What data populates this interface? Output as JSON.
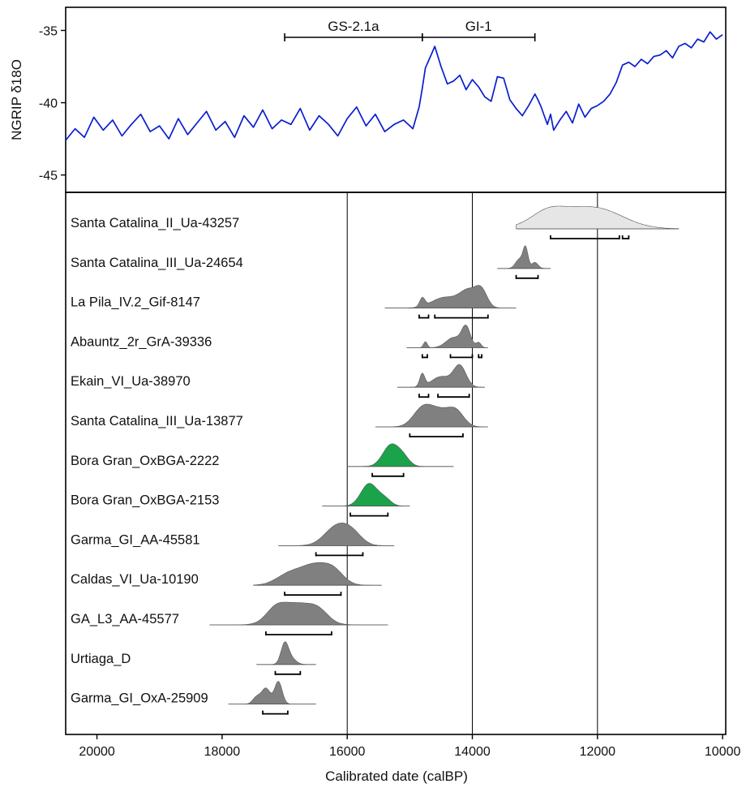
{
  "chart_data": [
    {
      "type": "line",
      "ylabel": "NGRIP δ18O",
      "xlim": [
        20500,
        9950
      ],
      "ylim": [
        -46.2,
        -33.4
      ],
      "yticks": [
        -35,
        -40,
        -45
      ],
      "line_color": "#0a1ecf",
      "stages": [
        {
          "label": "GS-2.1a",
          "start": 17000,
          "end": 14800
        },
        {
          "label": "GI-1",
          "start": 14800,
          "end": 13000
        }
      ],
      "series": [
        {
          "x": [
            20500,
            20350,
            20200,
            20050,
            19900,
            19750,
            19600,
            19450,
            19300,
            19150,
            19000,
            18850,
            18700,
            18550,
            18400,
            18250,
            18100,
            17950,
            17800,
            17650,
            17500,
            17350,
            17200,
            17050,
            16900,
            16750,
            16600,
            16450,
            16300,
            16150,
            16000,
            15850,
            15700,
            15550,
            15400,
            15250,
            15100,
            14950,
            14850,
            14800,
            14750,
            14700,
            14650,
            14600,
            14500,
            14400,
            14300,
            14200,
            14100,
            14000,
            13900,
            13800,
            13700,
            13600,
            13500,
            13400,
            13300,
            13200,
            13100,
            13000,
            12950,
            12900,
            12850,
            12800,
            12750,
            12700,
            12600,
            12500,
            12400,
            12300,
            12200,
            12100,
            12000,
            11900,
            11800,
            11700,
            11600,
            11500,
            11400,
            11300,
            11200,
            11100,
            11000,
            10900,
            10800,
            10700,
            10600,
            10500,
            10400,
            10300,
            10200,
            10100,
            10000
          ],
          "y": [
            -42.6,
            -41.8,
            -42.4,
            -41.0,
            -41.9,
            -41.2,
            -42.3,
            -41.5,
            -40.8,
            -42.0,
            -41.6,
            -42.5,
            -41.1,
            -42.2,
            -41.4,
            -40.6,
            -41.9,
            -41.3,
            -42.4,
            -40.9,
            -41.7,
            -40.5,
            -41.8,
            -41.2,
            -41.5,
            -40.4,
            -41.9,
            -40.9,
            -41.5,
            -42.3,
            -41.1,
            -40.3,
            -41.6,
            -40.8,
            -42.0,
            -41.5,
            -41.2,
            -41.8,
            -40.3,
            -39.0,
            -37.6,
            -37.1,
            -36.6,
            -36.1,
            -37.5,
            -38.7,
            -38.5,
            -38.1,
            -39.1,
            -38.4,
            -38.9,
            -39.6,
            -39.9,
            -38.2,
            -38.3,
            -39.8,
            -40.4,
            -40.9,
            -40.2,
            -39.4,
            -39.8,
            -40.3,
            -40.9,
            -41.5,
            -40.8,
            -41.9,
            -41.2,
            -40.6,
            -41.4,
            -40.1,
            -41.0,
            -40.4,
            -40.2,
            -39.9,
            -39.4,
            -38.6,
            -37.4,
            -37.2,
            -37.5,
            -37.0,
            -37.3,
            -36.8,
            -36.7,
            -36.4,
            -36.9,
            -36.1,
            -35.9,
            -36.2,
            -35.6,
            -35.8,
            -35.1,
            -35.6,
            -35.3
          ]
        }
      ]
    },
    {
      "type": "range-plot",
      "xlabel": "Calibrated date (calBP)",
      "xlim": [
        20500,
        9950
      ],
      "xticks": [
        20000,
        18000,
        16000,
        14000,
        12000,
        10000
      ],
      "reference_lines": [
        16000,
        14000,
        12000
      ],
      "samples": [
        {
          "label": "Santa Catalina_II_Ua-43257",
          "color": "#e6e6e6",
          "range": [
            13300,
            10700
          ],
          "peaks": [
            [
              12400,
              500,
              0.9
            ],
            [
              11900,
              400,
              0.7
            ],
            [
              12800,
              250,
              0.6
            ]
          ],
          "hpd": [
            [
              12750,
              11650
            ],
            [
              11600,
              11500
            ]
          ]
        },
        {
          "label": "Santa Catalina_III_Ua-24654",
          "color": "#808080",
          "range": [
            13600,
            12750
          ],
          "peaks": [
            [
              13150,
              40,
              1.0
            ],
            [
              13250,
              60,
              0.45
            ],
            [
              13000,
              50,
              0.3
            ]
          ],
          "hpd": [
            [
              13300,
              12950
            ]
          ]
        },
        {
          "label": "La Pila_IV.2_Gif-8147",
          "color": "#808080",
          "range": [
            15400,
            13300
          ],
          "peaks": [
            [
              14050,
              150,
              1.0
            ],
            [
              13850,
              90,
              0.8
            ],
            [
              14800,
              40,
              0.5
            ],
            [
              14450,
              200,
              0.6
            ]
          ],
          "hpd": [
            [
              14850,
              14700
            ],
            [
              14600,
              13750
            ]
          ]
        },
        {
          "label": "Abauntz_2r_GrA-39336",
          "color": "#808080",
          "range": [
            15050,
            13750
          ],
          "peaks": [
            [
              14100,
              70,
              1.0
            ],
            [
              14750,
              30,
              0.3
            ],
            [
              14300,
              120,
              0.5
            ],
            [
              13900,
              40,
              0.25
            ]
          ],
          "hpd": [
            [
              14800,
              14720
            ],
            [
              14350,
              14000
            ],
            [
              13900,
              13850
            ]
          ]
        },
        {
          "label": "Ekain_VI_Ua-38970",
          "color": "#808080",
          "range": [
            15200,
            13800
          ],
          "peaks": [
            [
              14200,
              100,
              1.0
            ],
            [
              14800,
              40,
              0.6
            ],
            [
              14500,
              150,
              0.5
            ]
          ],
          "hpd": [
            [
              14850,
              14700
            ],
            [
              14550,
              14050
            ]
          ]
        },
        {
          "label": "Santa Catalina_III_Ua-13877",
          "color": "#808080",
          "range": [
            15550,
            13750
          ],
          "peaks": [
            [
              14800,
              150,
              0.9
            ],
            [
              14500,
              200,
              0.9
            ],
            [
              14250,
              120,
              0.6
            ]
          ],
          "hpd": [
            [
              15000,
              14150
            ]
          ]
        },
        {
          "label": "Bora Gran_OxBGA-2222",
          "color": "#1aa34a",
          "range": [
            16000,
            14300
          ],
          "peaks": [
            [
              15300,
              130,
              1.0
            ],
            [
              15100,
              100,
              0.35
            ]
          ],
          "hpd": [
            [
              15600,
              15100
            ]
          ]
        },
        {
          "label": "Bora Gran_OxBGA-2153",
          "color": "#1aa34a",
          "range": [
            16400,
            15000
          ],
          "peaks": [
            [
              15650,
              130,
              1.0
            ],
            [
              15400,
              100,
              0.3
            ]
          ],
          "hpd": [
            [
              15950,
              15350
            ]
          ]
        },
        {
          "label": "Garma_GI_AA-45581",
          "color": "#808080",
          "range": [
            17100,
            15250
          ],
          "peaks": [
            [
              16150,
              200,
              1.0
            ],
            [
              15900,
              150,
              0.4
            ]
          ],
          "hpd": [
            [
              16500,
              15750
            ]
          ]
        },
        {
          "label": "Caldas_VI_Ua-10190",
          "color": "#808080",
          "range": [
            17500,
            15450
          ],
          "peaks": [
            [
              16500,
              250,
              1.0
            ],
            [
              16950,
              200,
              0.45
            ],
            [
              16200,
              150,
              0.4
            ]
          ],
          "hpd": [
            [
              17000,
              16100
            ]
          ]
        },
        {
          "label": "GA_L3_AA-45577",
          "color": "#808080",
          "range": [
            18200,
            15350
          ],
          "peaks": [
            [
              16800,
              280,
              1.0
            ],
            [
              17150,
              150,
              0.5
            ],
            [
              16450,
              150,
              0.4
            ]
          ],
          "hpd": [
            [
              17300,
              16250
            ]
          ]
        },
        {
          "label": "Urtiaga_D",
          "color": "#808080",
          "range": [
            17450,
            16500
          ],
          "peaks": [
            [
              17000,
              60,
              1.0
            ],
            [
              16900,
              80,
              0.3
            ]
          ],
          "hpd": [
            [
              17150,
              16750
            ]
          ]
        },
        {
          "label": "Garma_GI_OxA-25909",
          "color": "#808080",
          "range": [
            17900,
            16500
          ],
          "peaks": [
            [
              17100,
              60,
              1.0
            ],
            [
              17300,
              70,
              0.7
            ],
            [
              17450,
              60,
              0.3
            ]
          ],
          "hpd": [
            [
              17350,
              16950
            ]
          ]
        }
      ]
    }
  ]
}
